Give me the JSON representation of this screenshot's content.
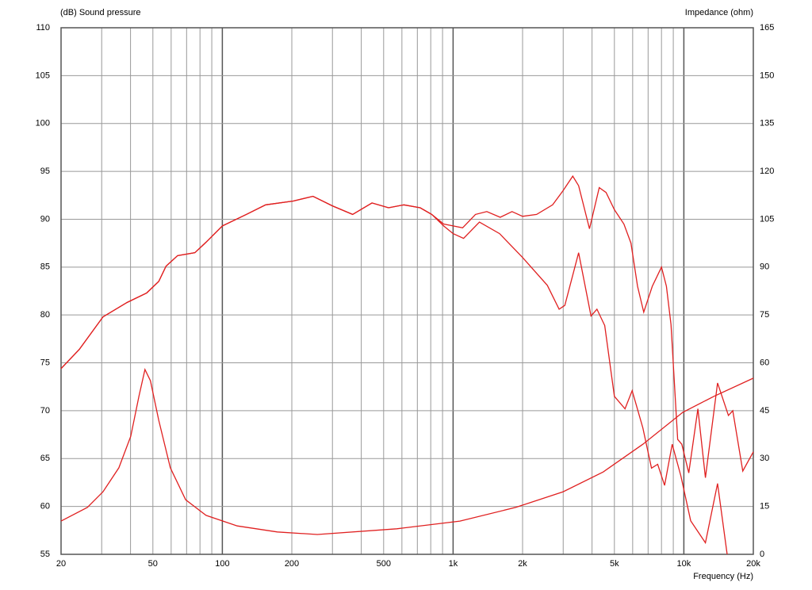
{
  "chart_data": {
    "type": "line",
    "y_label": "(dB)  Sound pressure",
    "y2_label": "Impedance  (ohm)",
    "x_label": "Frequency  (Hz)",
    "xscale": "log",
    "grid": true,
    "xlim": [
      20,
      20000
    ],
    "xticks": [
      20,
      50,
      100,
      200,
      500,
      {
        "value": 1000,
        "label": "1k"
      },
      {
        "value": 2000,
        "label": "2k"
      },
      {
        "value": 5000,
        "label": "5k"
      },
      {
        "value": 10000,
        "label": "10k"
      },
      {
        "value": 20000,
        "label": "20k"
      }
    ],
    "xminorticks": [
      30,
      40,
      60,
      70,
      80,
      90,
      300,
      400,
      600,
      700,
      800,
      900,
      3000,
      4000,
      6000,
      7000,
      8000,
      9000
    ],
    "ylim": [
      55,
      110
    ],
    "yticks": [
      55,
      60,
      65,
      70,
      75,
      80,
      85,
      90,
      95,
      100,
      105,
      110
    ],
    "y2lim": [
      0,
      165
    ],
    "y2ticks": [
      0,
      15,
      30,
      45,
      60,
      75,
      90,
      105,
      120,
      135,
      150,
      165
    ],
    "series": [
      {
        "axis": "y",
        "color": "#e02020",
        "x": [
          20,
          24,
          30.4,
          38.6,
          47,
          53,
          57,
          64,
          76,
          85,
          100,
          127,
          154,
          203,
          247,
          300,
          367,
          445,
          525,
          612,
          720,
          808,
          910,
          1000,
          1100,
          1250,
          1400,
          1600,
          1800,
          2000,
          2300,
          2700,
          3000,
          3300,
          3500,
          3900,
          4300,
          4600,
          5000,
          5500,
          5900,
          6300,
          6700,
          7300,
          8000,
          8400,
          8800,
          9400,
          9800,
          10500,
          11500,
          12400,
          14000,
          15600,
          16300,
          18000,
          20000
        ],
        "values": [
          74.4,
          76.4,
          79.8,
          81.3,
          82.3,
          83.5,
          85.1,
          86.2,
          86.5,
          87.6,
          89.3,
          90.5,
          91.5,
          91.9,
          92.4,
          91.4,
          90.5,
          91.7,
          91.2,
          91.5,
          91.2,
          90.5,
          89.5,
          89.3,
          89.1,
          90.5,
          90.8,
          90.2,
          90.8,
          90.3,
          90.5,
          91.5,
          93,
          94.5,
          93.5,
          89,
          93.3,
          92.8,
          91,
          89.5,
          87.5,
          83,
          80.3,
          83,
          85,
          83,
          79,
          67,
          66.5,
          63.5,
          70.2,
          63,
          72.9,
          69.5,
          70,
          63.7,
          65.7
        ]
      },
      {
        "axis": "y",
        "color": "#e02020",
        "x": [
          20,
          24,
          30.4,
          38.6,
          47,
          53,
          57,
          64,
          76,
          85,
          100,
          127,
          154,
          203,
          247,
          300,
          367,
          445,
          525,
          612,
          720,
          808,
          910,
          1000,
          1110,
          1300,
          1590,
          2000,
          2560,
          2880,
          3050,
          3500,
          3960,
          4200,
          4540,
          5000,
          5560,
          5970,
          6640,
          7240,
          7700,
          8250,
          8900,
          9700,
          10700,
          12400,
          14000,
          15400
        ],
        "values": [
          74.4,
          76.4,
          79.8,
          81.3,
          82.3,
          83.5,
          85.1,
          86.2,
          86.5,
          87.6,
          89.3,
          90.5,
          91.5,
          91.9,
          92.4,
          91.4,
          90.5,
          91.7,
          91.2,
          91.5,
          91.2,
          90.5,
          89.3,
          88.5,
          88,
          89.7,
          88.5,
          86,
          83.1,
          80.6,
          81,
          86.5,
          79.9,
          80.6,
          78.9,
          71.5,
          70.2,
          72.1,
          68.2,
          64,
          64.4,
          62.2,
          66.5,
          63.2,
          58.5,
          56.2,
          62.4,
          55
        ]
      },
      {
        "axis": "y2",
        "color": "#e02020",
        "x": [
          20,
          26,
          30.4,
          35.6,
          40.1,
          43.5,
          46.2,
          48.8,
          53,
          59.5,
          69.3,
          85,
          116,
          173,
          258,
          570,
          1070,
          1870,
          3000,
          4470,
          6640,
          9900,
          13500,
          20000
        ],
        "values": [
          10.4,
          14.7,
          19.6,
          27.1,
          37,
          49.5,
          57.9,
          54.4,
          42,
          27.1,
          17.1,
          12.2,
          8.9,
          7,
          6.2,
          8,
          10.4,
          14.7,
          19.6,
          25.8,
          34.5,
          44.5,
          49.5,
          55.2
        ]
      }
    ]
  }
}
